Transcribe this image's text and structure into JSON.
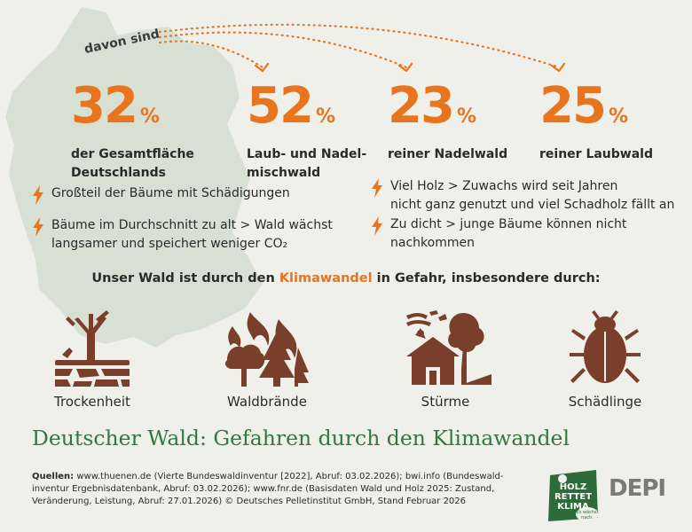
{
  "connector_label": "davon sind",
  "stats": [
    {
      "value": "32",
      "unit": "%",
      "label_lines": [
        "der Gesamtfläche",
        "Deutschlands"
      ]
    },
    {
      "value": "52",
      "unit": "%",
      "label_lines": [
        "Laub- und Nadel-",
        "mischwald"
      ]
    },
    {
      "value": "23",
      "unit": "%",
      "label_lines": [
        "reiner Nadelwald"
      ]
    },
    {
      "value": "25",
      "unit": "%",
      "label_lines": [
        "reiner Laubwald"
      ]
    }
  ],
  "bullets_left": [
    {
      "lines": [
        "Großteil der Bäume mit Schädigungen"
      ]
    },
    {
      "lines": [
        "Bäume im Durchschnitt zu alt > Wald wächst",
        "langsamer und speichert weniger CO₂"
      ]
    }
  ],
  "bullets_right": [
    {
      "lines": [
        "Viel Holz > Zuwachs wird seit Jahren",
        "nicht ganz genutzt und viel Schadholz fällt an"
      ]
    },
    {
      "lines": [
        "Zu dicht > junge Bäume können nicht",
        "nachkommen"
      ]
    }
  ],
  "headline": {
    "before": "Unser Wald ist durch den ",
    "highlight": "Klimawandel",
    "after": " in Gefahr, insbesondere durch:"
  },
  "threats": [
    {
      "label": "Trockenheit",
      "icon": "drought-tree-icon"
    },
    {
      "label": "Waldbrände",
      "icon": "forest-fire-icon"
    },
    {
      "label": "Stürme",
      "icon": "storm-house-icon"
    },
    {
      "label": "Schädlinge",
      "icon": "beetle-icon"
    }
  ],
  "title": "Deutscher Wald: Gefahren durch den Klimawandel",
  "sources": {
    "label": "Quellen:",
    "lines": [
      "www.thuenen.de (Vierte Bundeswaldinventur [2022], Abruf: 03.02.2026); bwi.info (Bundeswald-",
      "inventur Ergebnisdatenbank, Abruf: 03.02.2026); www.fnr.de (Basisdaten Wald und Holz 2025: Zustand,",
      "Veränderung, Leistung, Abruf: 27.01.2026) © Deutsches Pelletinstitut GmbH, Stand Februar 2026"
    ]
  },
  "logos": {
    "holz_lines": [
      "HOLZ",
      "RETTET",
      "KLIMA"
    ],
    "holz_tagline_lines": [
      "Es wächst",
      "nach."
    ],
    "depi": "DEPI"
  },
  "colors": {
    "accent": "#e9741e",
    "green": "#2e7a3d",
    "icon_brown": "#7a3f2a",
    "map": "#d8e0d4",
    "background": "#f0f0ea"
  }
}
